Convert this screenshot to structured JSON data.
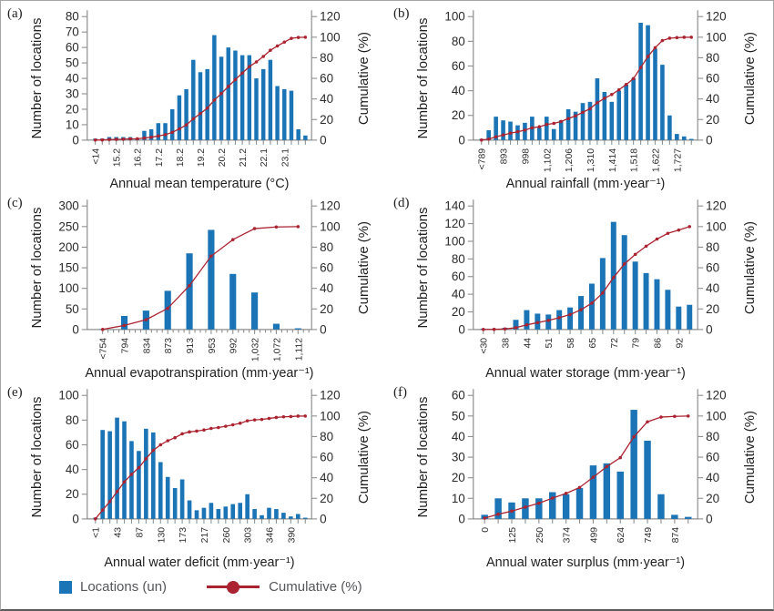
{
  "figure": {
    "legend": {
      "locations_label": "Locations (un)",
      "cumulative_label": "Cumulative (%)"
    },
    "colors": {
      "bar": "#1b74b5",
      "line": "#ab2330",
      "axis": "#8f8f8f",
      "tick_text": "#2b2b2b",
      "title_text": "#1f1f1f",
      "legend_text": "#55565a"
    }
  },
  "chart_data": [
    {
      "panel": "(a)",
      "type": "bar",
      "title": "",
      "xlabel": "Annual mean temperature (°C)",
      "ylabel": "Number of locations",
      "ylabel2": "Cumulative (%)",
      "ylim_left": [
        0,
        80
      ],
      "ytick_step": 10,
      "ylim_right": [
        0,
        120
      ],
      "ytick_step_right": 20,
      "grid": "off",
      "tick_labels": [
        "<14",
        "",
        "",
        "15.2",
        "",
        "",
        "16.2",
        "",
        "",
        "17.2",
        "",
        "",
        "18.2",
        "",
        "",
        "19.2",
        "",
        "",
        "20.2",
        "",
        "",
        "21.2",
        "",
        "",
        "22.1",
        "",
        "",
        "23.1",
        "",
        "",
        ""
      ],
      "values": [
        1,
        1,
        2,
        2,
        2,
        2,
        1,
        6,
        7,
        11,
        11,
        20,
        29,
        33,
        52,
        44,
        46,
        68,
        54,
        60,
        58,
        55,
        55,
        40,
        46,
        52,
        35,
        33,
        32,
        7,
        3
      ],
      "cumulative_pct": [
        0.1,
        0.2,
        0.5,
        0.7,
        0.9,
        1.2,
        1.3,
        2.0,
        2.8,
        4.0,
        5.3,
        7.6,
        10.9,
        14.7,
        20.7,
        25.8,
        31.1,
        38.9,
        45.2,
        52.1,
        58.8,
        65.1,
        71.4,
        76.0,
        81.3,
        87.3,
        91.4,
        95.2,
        98.8,
        99.7,
        100
      ],
      "minor_ticks_per_gap": 0,
      "bar_width_frac": 0.58
    },
    {
      "panel": "(b)",
      "type": "bar",
      "title": "",
      "xlabel": "Annual rainfall (mm·year⁻¹)",
      "ylabel": "Number of locations",
      "ylabel2": "Cumulative (%)",
      "ylim_left": [
        0,
        100
      ],
      "ytick_step": 20,
      "ylim_right": [
        0,
        120
      ],
      "ytick_step_right": 20,
      "grid": "off",
      "tick_labels": [
        "<789",
        "",
        "",
        "893",
        "",
        "",
        "998",
        "",
        "",
        "1,102",
        "",
        "",
        "1,206",
        "",
        "",
        "1,310",
        "",
        "",
        "1,414",
        "",
        "",
        "1,518",
        "",
        "",
        "1,622",
        "",
        "",
        "1,727",
        "",
        ""
      ],
      "values": [
        1,
        8,
        19,
        16,
        15,
        12,
        14,
        19,
        10,
        19,
        9,
        16,
        25,
        23,
        30,
        31,
        50,
        39,
        31,
        40,
        45,
        50,
        95,
        93,
        74,
        61,
        20,
        5,
        3,
        1
      ],
      "cumulative_pct": [
        0.1,
        1.0,
        3.2,
        5.0,
        6.8,
        8.1,
        9.7,
        11.9,
        13.0,
        15.2,
        16.2,
        18.1,
        20.9,
        23.6,
        27.0,
        30.5,
        36.3,
        40.7,
        44.3,
        48.9,
        54.0,
        59.7,
        70.6,
        81.2,
        89.7,
        96.7,
        99.0,
        99.5,
        99.9,
        100
      ],
      "minor_ticks_per_gap": 0,
      "bar_width_frac": 0.58
    },
    {
      "panel": "(c)",
      "type": "bar",
      "title": "",
      "xlabel": "Annual evapotranspiration (mm·year⁻¹)",
      "ylabel": "Number of locations",
      "ylabel2": "Cumulative (%)",
      "ylim_left": [
        0,
        300
      ],
      "ytick_step": 50,
      "ylim_right": [
        0,
        120
      ],
      "ytick_step_right": 20,
      "grid": "off",
      "tick_labels": [
        "<754",
        "794",
        "834",
        "873",
        "913",
        "953",
        "992",
        "1,032",
        "1,072",
        "1,112"
      ],
      "values": [
        1,
        33,
        46,
        94,
        185,
        242,
        135,
        90,
        14,
        3
      ],
      "cumulative_pct": [
        0.1,
        4.0,
        9.5,
        20.6,
        42.6,
        71.3,
        87.3,
        98.0,
        99.6,
        100
      ],
      "minor_ticks_per_gap": 3,
      "bar_width_frac": 0.3
    },
    {
      "panel": "(d)",
      "type": "bar",
      "title": "",
      "xlabel": "Annual water storage (mm·year⁻¹)",
      "ylabel": "Number of locations",
      "ylabel2": "Cumulative (%)",
      "ylim_left": [
        0,
        140
      ],
      "ytick_step": 20,
      "ylim_right": [
        0,
        120
      ],
      "ytick_step_right": 20,
      "grid": "off",
      "tick_labels": [
        "<30",
        "",
        "38",
        "",
        "44",
        "",
        "51",
        "",
        "58",
        "",
        "65",
        "",
        "72",
        "",
        "79",
        "",
        "86",
        "",
        "92",
        ""
      ],
      "values": [
        1,
        1,
        2,
        11,
        22,
        18,
        17,
        22,
        25,
        38,
        52,
        81,
        122,
        107,
        77,
        64,
        57,
        45,
        26,
        28
      ],
      "cumulative_pct": [
        0.1,
        0.2,
        0.5,
        1.8,
        4.5,
        6.7,
        8.8,
        11.5,
        14.6,
        19.2,
        25.6,
        35.5,
        50.5,
        63.6,
        73.0,
        80.9,
        87.9,
        93.4,
        96.6,
        100
      ],
      "minor_ticks_per_gap": 0,
      "bar_width_frac": 0.5
    },
    {
      "panel": "(e)",
      "type": "bar",
      "title": "",
      "xlabel": "Annual water deficit (mm·year⁻¹)",
      "ylabel": "Number of locations",
      "ylabel2": "Cumulative (%)",
      "ylim_left": [
        0,
        100
      ],
      "ytick_step": 20,
      "ylim_right": [
        0,
        120
      ],
      "ytick_step_right": 20,
      "grid": "off",
      "tick_labels": [
        "<1",
        "",
        "",
        "43",
        "",
        "",
        "87",
        "",
        "",
        "130",
        "",
        "",
        "173",
        "",
        "",
        "217",
        "",
        "",
        "260",
        "",
        "",
        "303",
        "",
        "",
        "346",
        "",
        "",
        "390",
        "",
        ""
      ],
      "values": [
        1,
        72,
        71,
        82,
        79,
        63,
        55,
        73,
        70,
        46,
        34,
        25,
        32,
        15,
        7,
        9,
        13,
        8,
        10,
        12,
        13,
        20,
        8,
        3,
        9,
        8,
        5,
        2,
        4,
        1
      ],
      "cumulative_pct": [
        0.1,
        8.6,
        16.9,
        26.6,
        35.9,
        43.3,
        49.8,
        58.4,
        66.6,
        72.0,
        76.0,
        78.9,
        82.7,
        84.5,
        85.3,
        86.4,
        87.9,
        88.8,
        90.0,
        91.4,
        92.9,
        95.3,
        96.2,
        96.6,
        97.6,
        98.6,
        99.2,
        99.4,
        99.9,
        100
      ],
      "minor_ticks_per_gap": 0,
      "bar_width_frac": 0.58
    },
    {
      "panel": "(f)",
      "type": "bar",
      "title": "",
      "xlabel": "Annual water surplus (mm·year⁻¹)",
      "ylabel": "Number of locations",
      "ylabel2": "Cumulative (%)",
      "ylim_left": [
        0,
        60
      ],
      "ytick_step": 10,
      "ylim_right": [
        0,
        120
      ],
      "ytick_step_right": 20,
      "grid": "off",
      "tick_labels": [
        "0",
        "",
        "125",
        "",
        "250",
        "",
        "374",
        "",
        "499",
        "",
        "624",
        "",
        "749",
        "",
        "874",
        ""
      ],
      "values": [
        2,
        10,
        8,
        10,
        10,
        13,
        12,
        15,
        26,
        27,
        23,
        53,
        38,
        12,
        2,
        1
      ],
      "cumulative_pct": [
        0.8,
        4.6,
        7.6,
        11.5,
        15.3,
        20.2,
        24.8,
        30.5,
        40.5,
        50.8,
        59.5,
        79.8,
        94.3,
        98.9,
        99.6,
        100
      ],
      "minor_ticks_per_gap": 0,
      "bar_width_frac": 0.5
    }
  ]
}
